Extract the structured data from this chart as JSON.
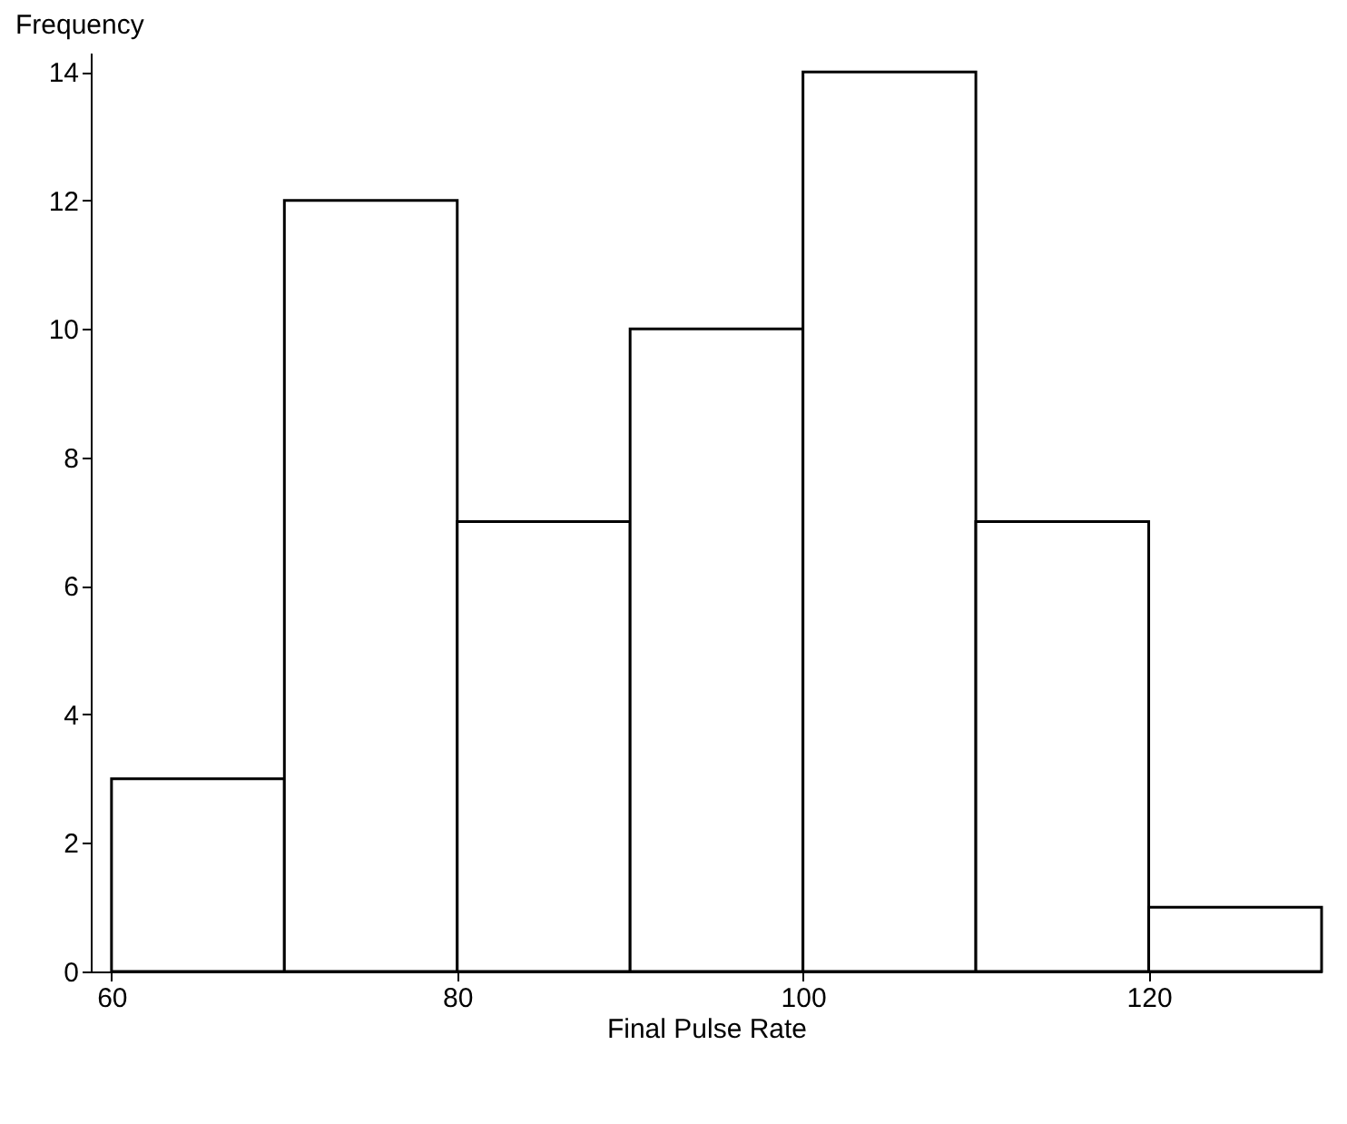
{
  "chart_data": {
    "type": "histogram",
    "xlabel": "Final Pulse Rate",
    "ylabel": "Frequency",
    "bins": [
      60,
      70,
      80,
      90,
      100,
      110,
      120,
      130
    ],
    "values": [
      3,
      12,
      7,
      10,
      14,
      7,
      1
    ],
    "color": "#ffffff",
    "xlim": [
      58.8,
      130
    ],
    "xticks": [
      60,
      80,
      100,
      120
    ],
    "ylim": [
      0,
      14.3
    ],
    "yticks": [
      0,
      2,
      4,
      6,
      8,
      10,
      12,
      14
    ],
    "grid": false
  }
}
